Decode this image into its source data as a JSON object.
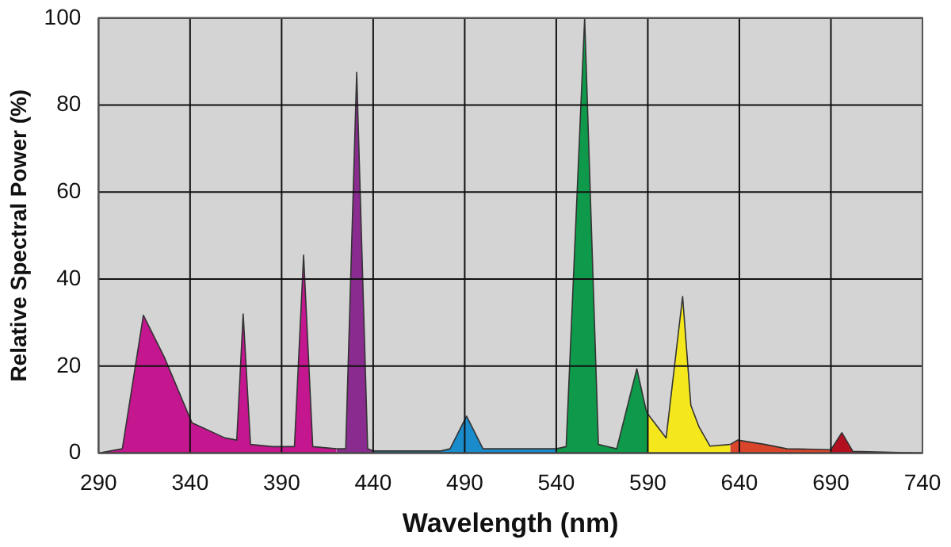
{
  "chart_data": {
    "type": "area",
    "xlabel": "Wavelength (nm)",
    "ylabel": "Relative Spectral Power (%)",
    "xlim": [
      290,
      740
    ],
    "ylim": [
      0,
      100
    ],
    "xticks": [
      290,
      340,
      390,
      440,
      490,
      540,
      590,
      640,
      690,
      740
    ],
    "yticks": [
      0,
      20,
      40,
      60,
      80,
      100
    ],
    "grid": true,
    "legend": false,
    "marker": "none",
    "series": [
      {
        "color": "#c4168f",
        "x": [
          290,
          303,
          314.5,
          326,
          341,
          359,
          365.5,
          369,
          373,
          385,
          397,
          402,
          407,
          420
        ],
        "values": [
          0,
          1,
          31.7,
          22,
          7,
          3.5,
          3,
          32,
          2,
          1.5,
          1.5,
          45.5,
          1.5,
          1
        ]
      },
      {
        "color": "#8a2b8f",
        "x": [
          420,
          425,
          431,
          437,
          440
        ],
        "values": [
          1,
          1,
          87.5,
          1,
          0.5
        ]
      },
      {
        "color": "#1a8ccc",
        "x": [
          440,
          477,
          482,
          491,
          500,
          540
        ],
        "values": [
          0.5,
          0.5,
          1,
          8.5,
          1,
          1
        ]
      },
      {
        "color": "#0e9a4a",
        "x": [
          540,
          545.4,
          555.5,
          563,
          573,
          584,
          589,
          590
        ],
        "values": [
          1,
          1.5,
          100,
          2,
          1,
          19.4,
          10,
          9
        ]
      },
      {
        "color": "#f4e81c",
        "x": [
          590,
          600,
          609,
          613.5,
          618,
          624,
          635
        ],
        "values": [
          9,
          3.5,
          36,
          11,
          6,
          1.6,
          2
        ]
      },
      {
        "color": "#d8452a",
        "x": [
          635,
          639,
          654,
          666,
          690
        ],
        "values": [
          2,
          3,
          2,
          1,
          0.8
        ]
      },
      {
        "color": "#b3101f",
        "x": [
          690,
          696,
          702,
          740
        ],
        "values": [
          0.8,
          4.7,
          0.4,
          0
        ]
      }
    ]
  }
}
